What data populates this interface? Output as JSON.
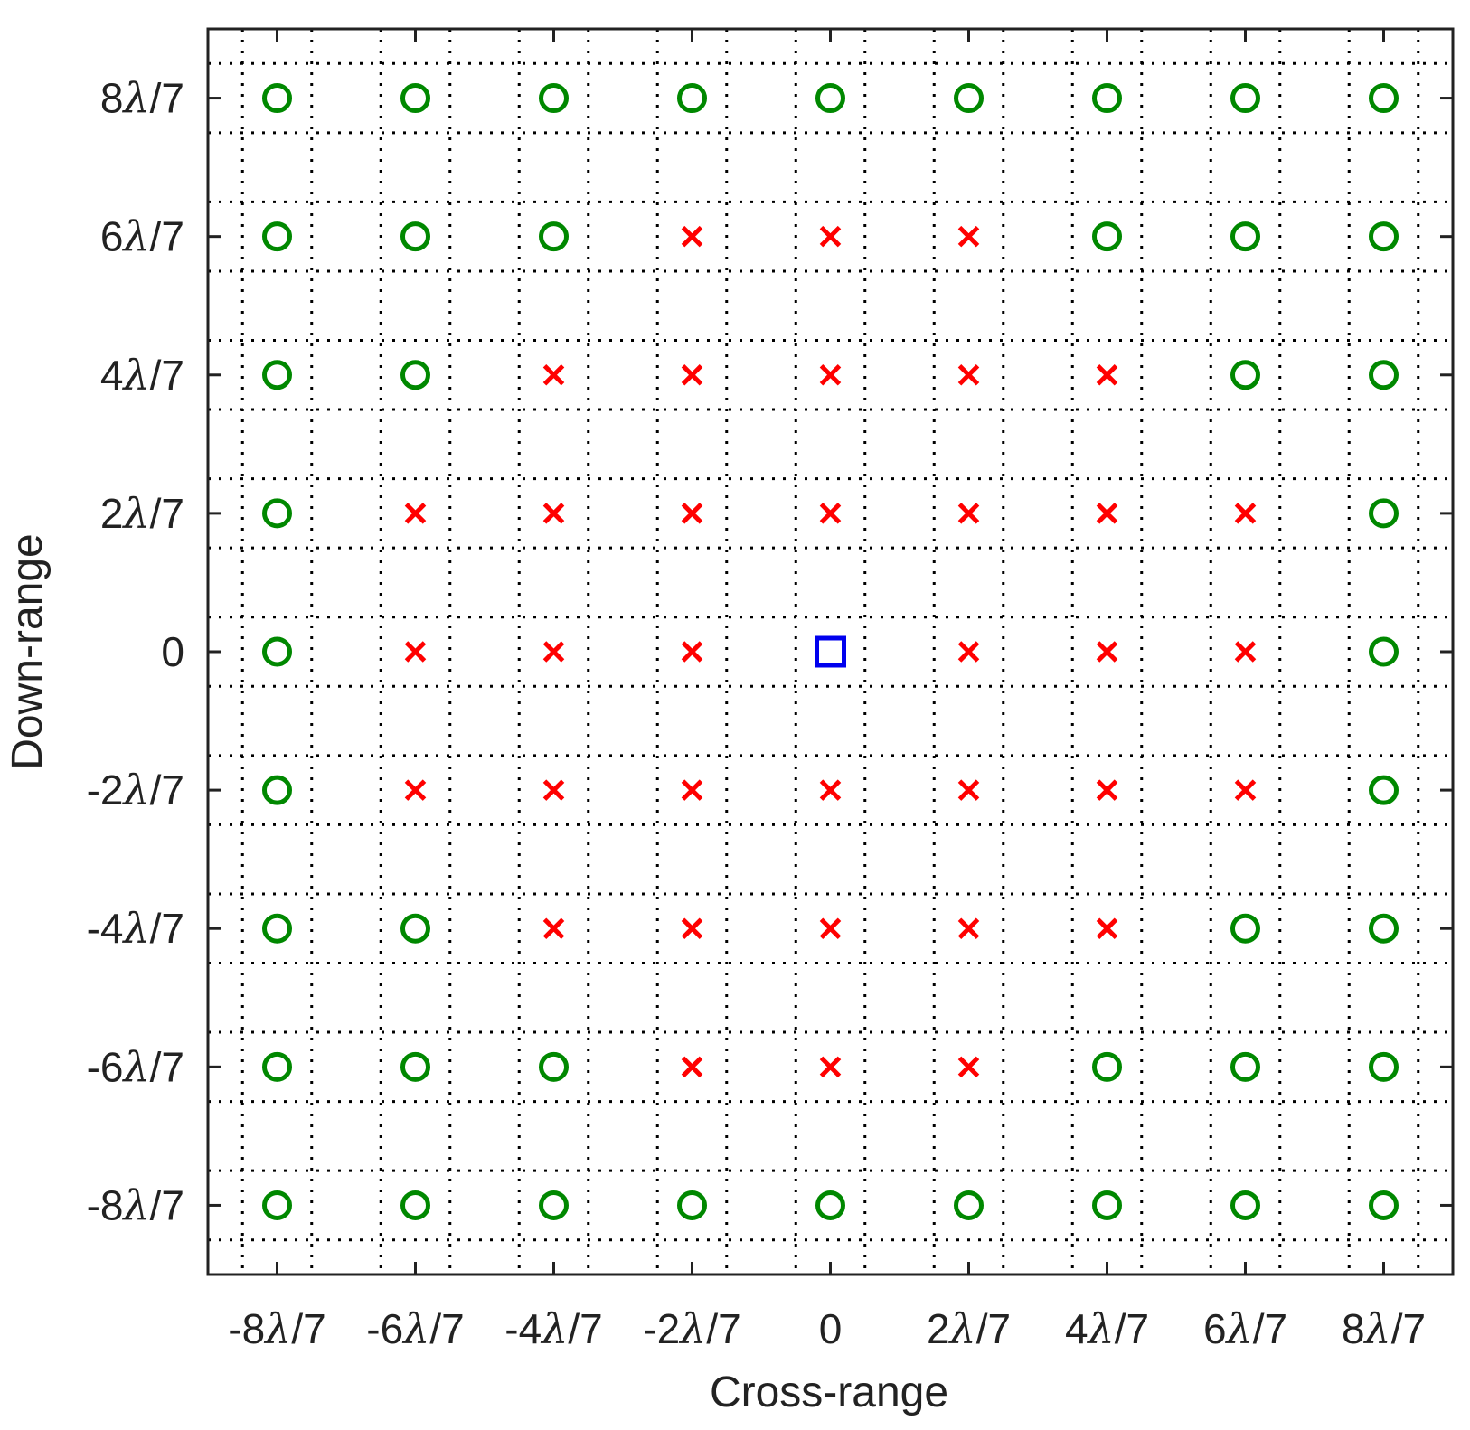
{
  "chart_data": {
    "type": "scatter",
    "title": "",
    "xlabel": "Cross-range",
    "ylabel": "Down-range",
    "xlim": [
      -9,
      9
    ],
    "ylim": [
      -9,
      9
    ],
    "x_ticks": [
      {
        "value": -8,
        "coef": "-8",
        "unit": "λ/7"
      },
      {
        "value": -6,
        "coef": "-6",
        "unit": "λ/7"
      },
      {
        "value": -4,
        "coef": "-4",
        "unit": "λ/7"
      },
      {
        "value": -2,
        "coef": "-2",
        "unit": "λ/7"
      },
      {
        "value": 0,
        "coef": "0",
        "unit": ""
      },
      {
        "value": 2,
        "coef": "2",
        "unit": "λ/7"
      },
      {
        "value": 4,
        "coef": "4",
        "unit": "λ/7"
      },
      {
        "value": 6,
        "coef": "6",
        "unit": "λ/7"
      },
      {
        "value": 8,
        "coef": "8",
        "unit": "λ/7"
      }
    ],
    "y_ticks": [
      {
        "value": 8,
        "coef": "8",
        "unit": "λ/7"
      },
      {
        "value": 6,
        "coef": "6",
        "unit": "λ/7"
      },
      {
        "value": 4,
        "coef": "4",
        "unit": "λ/7"
      },
      {
        "value": 2,
        "coef": "2",
        "unit": "λ/7"
      },
      {
        "value": 0,
        "coef": "0",
        "unit": ""
      },
      {
        "value": -2,
        "coef": "-2",
        "unit": "λ/7"
      },
      {
        "value": -4,
        "coef": "-4",
        "unit": "λ/7"
      },
      {
        "value": -6,
        "coef": "-6",
        "unit": "λ/7"
      },
      {
        "value": -8,
        "coef": "-8",
        "unit": "λ/7"
      }
    ],
    "grid": "dotted",
    "grid_lines": [
      -8.5,
      -7.5,
      -6.5,
      -5.5,
      -4.5,
      -3.5,
      -2.5,
      -1.5,
      -0.5,
      0.5,
      1.5,
      2.5,
      3.5,
      4.5,
      5.5,
      6.5,
      7.5,
      8.5
    ],
    "series": [
      {
        "marker": "circle",
        "color": "#008800",
        "points": [
          [
            -8,
            8
          ],
          [
            -6,
            8
          ],
          [
            -4,
            8
          ],
          [
            -2,
            8
          ],
          [
            0,
            8
          ],
          [
            2,
            8
          ],
          [
            4,
            8
          ],
          [
            6,
            8
          ],
          [
            8,
            8
          ],
          [
            -8,
            6
          ],
          [
            -6,
            6
          ],
          [
            -4,
            6
          ],
          [
            4,
            6
          ],
          [
            6,
            6
          ],
          [
            8,
            6
          ],
          [
            -8,
            4
          ],
          [
            -6,
            4
          ],
          [
            6,
            4
          ],
          [
            8,
            4
          ],
          [
            -8,
            2
          ],
          [
            8,
            2
          ],
          [
            -8,
            0
          ],
          [
            8,
            0
          ],
          [
            -8,
            -2
          ],
          [
            8,
            -2
          ],
          [
            -8,
            -4
          ],
          [
            -6,
            -4
          ],
          [
            6,
            -4
          ],
          [
            8,
            -4
          ],
          [
            -8,
            -6
          ],
          [
            -6,
            -6
          ],
          [
            -4,
            -6
          ],
          [
            4,
            -6
          ],
          [
            6,
            -6
          ],
          [
            8,
            -6
          ],
          [
            -8,
            -8
          ],
          [
            -6,
            -8
          ],
          [
            -4,
            -8
          ],
          [
            -2,
            -8
          ],
          [
            0,
            -8
          ],
          [
            2,
            -8
          ],
          [
            4,
            -8
          ],
          [
            6,
            -8
          ],
          [
            8,
            -8
          ]
        ]
      },
      {
        "marker": "x",
        "color": "#ff0000",
        "points": [
          [
            -2,
            6
          ],
          [
            0,
            6
          ],
          [
            2,
            6
          ],
          [
            -4,
            4
          ],
          [
            -2,
            4
          ],
          [
            0,
            4
          ],
          [
            2,
            4
          ],
          [
            4,
            4
          ],
          [
            -6,
            2
          ],
          [
            -4,
            2
          ],
          [
            -2,
            2
          ],
          [
            0,
            2
          ],
          [
            2,
            2
          ],
          [
            4,
            2
          ],
          [
            6,
            2
          ],
          [
            -6,
            0
          ],
          [
            -4,
            0
          ],
          [
            -2,
            0
          ],
          [
            2,
            0
          ],
          [
            4,
            0
          ],
          [
            6,
            0
          ],
          [
            -6,
            -2
          ],
          [
            -4,
            -2
          ],
          [
            -2,
            -2
          ],
          [
            0,
            -2
          ],
          [
            2,
            -2
          ],
          [
            4,
            -2
          ],
          [
            6,
            -2
          ],
          [
            -4,
            -4
          ],
          [
            -2,
            -4
          ],
          [
            0,
            -4
          ],
          [
            2,
            -4
          ],
          [
            4,
            -4
          ],
          [
            -2,
            -6
          ],
          [
            0,
            -6
          ],
          [
            2,
            -6
          ]
        ]
      },
      {
        "marker": "square",
        "color": "#0000ee",
        "points": [
          [
            0,
            0
          ]
        ]
      }
    ]
  }
}
